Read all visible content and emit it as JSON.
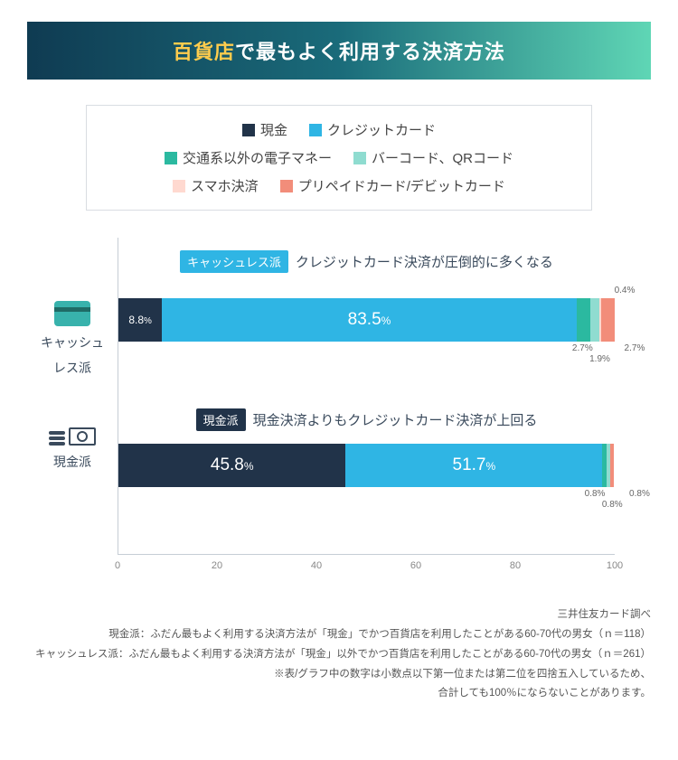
{
  "colors": {
    "title_gradient_from": "#0f3b52",
    "title_gradient_via": "#1a6b7a",
    "title_gradient_to": "#5fd6b5",
    "accent_yellow": "#ffcc4d",
    "border_gray": "#d9dde2",
    "text_dark": "#3a4a5c",
    "axis_line": "#c6cdd5",
    "grid_line": "#eef1f4"
  },
  "title": {
    "accent": "百貨店",
    "rest": "で最もよく利用する決済方法"
  },
  "legend": {
    "rows": [
      [
        {
          "label": "現金",
          "color": "#213349"
        },
        {
          "label": "クレジットカード",
          "color": "#2fb5e4"
        }
      ],
      [
        {
          "label": "交通系以外の電子マネー",
          "color": "#2bb9a0"
        },
        {
          "label": "バーコード、QRコード",
          "color": "#8fdcd0"
        }
      ],
      [
        {
          "label": "スマホ決済",
          "color": "#ffd9d0"
        },
        {
          "label": "プリペイドカード/デビットカード",
          "color": "#f28d7a"
        }
      ]
    ]
  },
  "chart": {
    "type": "stacked-horizontal-bar",
    "x_axis": {
      "min": 0,
      "max": 100,
      "ticks": [
        0,
        20,
        40,
        60,
        80,
        100
      ]
    },
    "groups": [
      {
        "id": "cashless",
        "side_label_lines": [
          "キャッシュ",
          "レス派"
        ],
        "icon": "card",
        "caption": {
          "tag_bg": "#2fb5e4",
          "tag_text": "キャッシュレス派",
          "text": "クレジットカード決済が圧倒的に多くなる"
        },
        "segments": [
          {
            "value": 8.8,
            "color": "#213349",
            "label": "8.8",
            "show_inline": true
          },
          {
            "value": 83.5,
            "color": "#2fb5e4",
            "label": "83.5",
            "show_inline": true,
            "big": true
          },
          {
            "value": 2.7,
            "color": "#2bb9a0",
            "label": "2.7",
            "show_inline": false
          },
          {
            "value": 1.9,
            "color": "#8fdcd0",
            "label": "1.9",
            "show_inline": false
          },
          {
            "value": 0.4,
            "color": "#ffd9d0",
            "label": "0.4",
            "show_inline": false
          },
          {
            "value": 2.7,
            "color": "#f28d7a",
            "label": "2.7",
            "show_inline": false
          }
        ],
        "callouts_above": [
          {
            "label": "0.4%",
            "at_pct": 102
          }
        ],
        "callouts_below": [
          {
            "label": "2.7%",
            "at_pct": 93.5
          },
          {
            "label": "1.9%",
            "at_pct": 97
          },
          {
            "label": "2.7%",
            "at_pct": 104
          }
        ]
      },
      {
        "id": "cash",
        "side_label_lines": [
          "現金派"
        ],
        "icon": "cash",
        "caption": {
          "tag_bg": "#213349",
          "tag_text": "現金派",
          "text": "現金決済よりもクレジットカード決済が上回る"
        },
        "segments": [
          {
            "value": 45.8,
            "color": "#213349",
            "label": "45.8",
            "show_inline": true,
            "big": true
          },
          {
            "value": 51.7,
            "color": "#2fb5e4",
            "label": "51.7",
            "show_inline": true,
            "big": true
          },
          {
            "value": 0.8,
            "color": "#2bb9a0",
            "label": "0.8",
            "show_inline": false
          },
          {
            "value": 0.8,
            "color": "#8fdcd0",
            "label": "0.8",
            "show_inline": false
          },
          {
            "value": 0.0,
            "color": "#ffd9d0",
            "label": "",
            "show_inline": false
          },
          {
            "value": 0.8,
            "color": "#f28d7a",
            "label": "0.8",
            "show_inline": false
          }
        ],
        "callouts_below": [
          {
            "label": "0.8%",
            "at_pct": 96
          },
          {
            "label": "0.8%",
            "at_pct": 99.5
          },
          {
            "label": "0.8%",
            "at_pct": 105
          }
        ]
      }
    ]
  },
  "footnotes": [
    "三井住友カード調べ",
    "現金派：ふだん最もよく利用する決済方法が「現金」でかつ百貨店を利用したことがある60-70代の男女（ｎ＝118）",
    "キャッシュレス派：ふだん最もよく利用する決済方法が「現金」以外でかつ百貨店を利用したことがある60-70代の男女（ｎ＝261）",
    "※表/グラフ中の数字は小数点以下第一位または第二位を四捨五入しているため、",
    "合計しても100％にならないことがあります。"
  ]
}
